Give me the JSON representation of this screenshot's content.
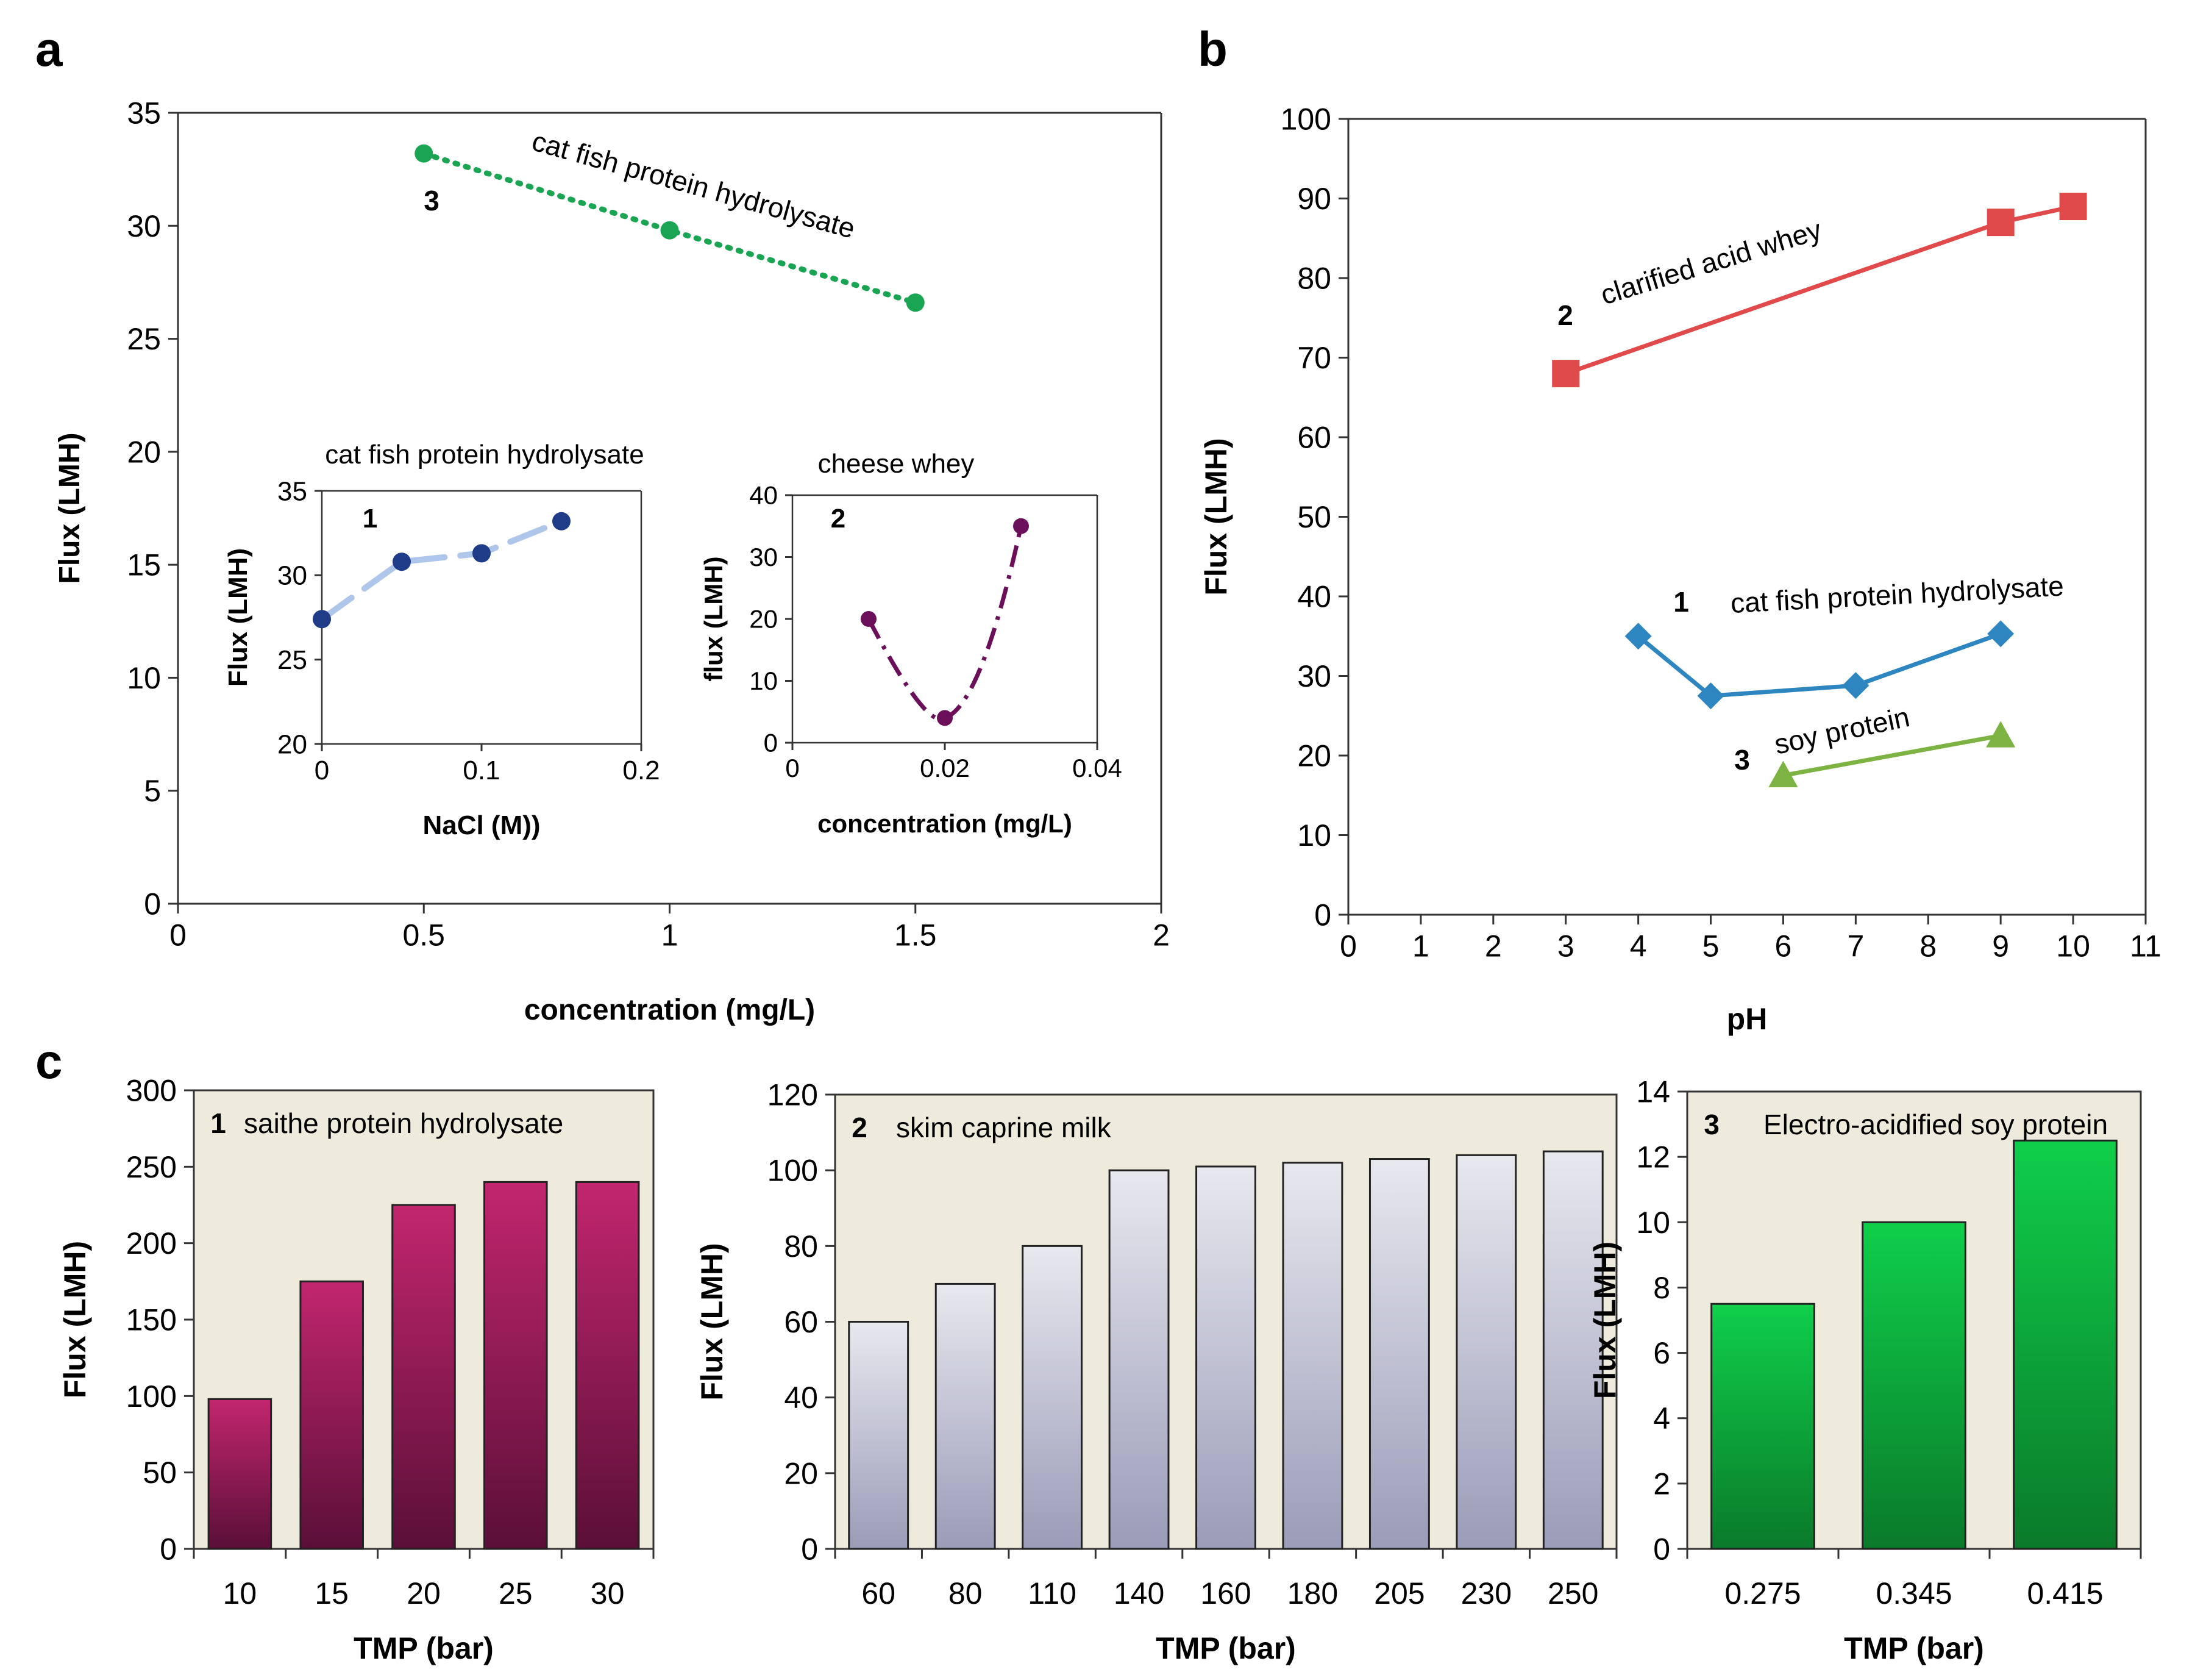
{
  "panel_letters": {
    "a": "a",
    "b": "b",
    "c": "c"
  },
  "colors": {
    "catfish_main": "#1aa552",
    "catfish_inset": "#1f3c88",
    "catfish_inset_line": "#aec6ea",
    "cheese_whey": "#6b0f5a",
    "acid_whey": "#e04a4a",
    "catfish_b": "#2e86c1",
    "soy_protein": "#7cb342",
    "saithe_top": "#c2266e",
    "saithe_bottom": "#5a0f38",
    "caprine_top": "#e8e8ef",
    "caprine_bottom": "#9a9cb8",
    "soy_bar_top": "#0fcf4a",
    "soy_bar_bottom": "#0a7a2a",
    "panel_c_bg": "#efebdc"
  },
  "chart_data": [
    {
      "id": "a-main",
      "type": "line",
      "xlabel": "concentration (mg/L)",
      "ylabel": "Flux (LMH)",
      "xlim": [
        0,
        2
      ],
      "ylim": [
        0,
        35
      ],
      "xticks": [
        "0",
        "0.5",
        "1",
        "1.5",
        "2"
      ],
      "yticks": [
        "0",
        "5",
        "10",
        "15",
        "20",
        "25",
        "30",
        "35"
      ],
      "series": [
        {
          "name": "cat fish protein hydrolysate",
          "number": "3",
          "x": [
            0.5,
            1,
            1.5
          ],
          "values": [
            33.2,
            29.8,
            26.6
          ]
        }
      ]
    },
    {
      "id": "a-inset1",
      "type": "line",
      "title": "cat fish protein hydrolysate",
      "number": "1",
      "xlabel": "NaCl (M))",
      "ylabel": "Flux (LMH)",
      "xlim": [
        0,
        0.2
      ],
      "ylim": [
        20,
        35
      ],
      "xticks": [
        "0",
        "0.1",
        "0.2"
      ],
      "yticks": [
        "20",
        "25",
        "30",
        "35"
      ],
      "series": [
        {
          "name": "cat fish protein hydrolysate",
          "x": [
            0,
            0.05,
            0.1,
            0.15
          ],
          "values": [
            27.4,
            30.8,
            31.3,
            33.2
          ]
        }
      ]
    },
    {
      "id": "a-inset2",
      "type": "line",
      "title": "cheese whey",
      "number": "2",
      "xlabel": "concentration (mg/L)",
      "ylabel": "flux (LMH)",
      "xlim": [
        0,
        0.04
      ],
      "ylim": [
        0,
        40
      ],
      "xticks": [
        "0",
        "0.02",
        "0.04"
      ],
      "yticks": [
        "0",
        "10",
        "20",
        "30",
        "40"
      ],
      "series": [
        {
          "name": "cheese whey",
          "x": [
            0.01,
            0.02,
            0.03
          ],
          "values": [
            20,
            4,
            35
          ]
        }
      ]
    },
    {
      "id": "b",
      "type": "line",
      "xlabel": "pH",
      "ylabel": "Flux (LMH)",
      "xlim": [
        0,
        11
      ],
      "ylim": [
        0,
        100
      ],
      "xticks": [
        "0",
        "1",
        "2",
        "3",
        "4",
        "5",
        "6",
        "7",
        "8",
        "9",
        "10",
        "11"
      ],
      "yticks": [
        "0",
        "10",
        "20",
        "30",
        "40",
        "50",
        "60",
        "70",
        "80",
        "90",
        "100"
      ],
      "series": [
        {
          "name": "clarified acid whey",
          "number": "2",
          "x": [
            3,
            9,
            10
          ],
          "values": [
            68,
            87,
            89
          ]
        },
        {
          "name": "cat fish protein hydrolysate",
          "number": "1",
          "x": [
            4,
            5,
            7,
            9
          ],
          "values": [
            35,
            27.5,
            28.8,
            35.3
          ]
        },
        {
          "name": "soy protein",
          "number": "3",
          "x": [
            6,
            9
          ],
          "values": [
            17.5,
            22.5
          ]
        }
      ]
    },
    {
      "id": "c1",
      "type": "bar",
      "title": "saithe protein hydrolysate",
      "number": "1",
      "xlabel": "TMP (bar)",
      "ylabel": "Flux (LMH)",
      "ylim": [
        0,
        300
      ],
      "yticks": [
        "0",
        "50",
        "100",
        "150",
        "200",
        "250",
        "300"
      ],
      "categories": [
        "10",
        "15",
        "20",
        "25",
        "30"
      ],
      "values": [
        98,
        175,
        225,
        240,
        240
      ]
    },
    {
      "id": "c2",
      "type": "bar",
      "title": "skim caprine milk",
      "number": "2",
      "xlabel": "TMP (bar)",
      "ylabel": "Flux (LMH)",
      "ylim": [
        0,
        120
      ],
      "yticks": [
        "0",
        "20",
        "40",
        "60",
        "80",
        "100",
        "120"
      ],
      "categories": [
        "60",
        "80",
        "110",
        "140",
        "160",
        "180",
        "205",
        "230",
        "250"
      ],
      "values": [
        60,
        70,
        80,
        100,
        101,
        102,
        103,
        104,
        105
      ]
    },
    {
      "id": "c3",
      "type": "bar",
      "title": "Electro-acidified soy protein",
      "number": "3",
      "xlabel": "TMP (bar)",
      "ylabel": "Flux (LMH)",
      "ylim": [
        0,
        14
      ],
      "yticks": [
        "0",
        "2",
        "4",
        "6",
        "8",
        "10",
        "12",
        "14"
      ],
      "categories": [
        "0.275",
        "0.345",
        "0.415"
      ],
      "values": [
        7.5,
        10,
        12.5
      ]
    }
  ]
}
